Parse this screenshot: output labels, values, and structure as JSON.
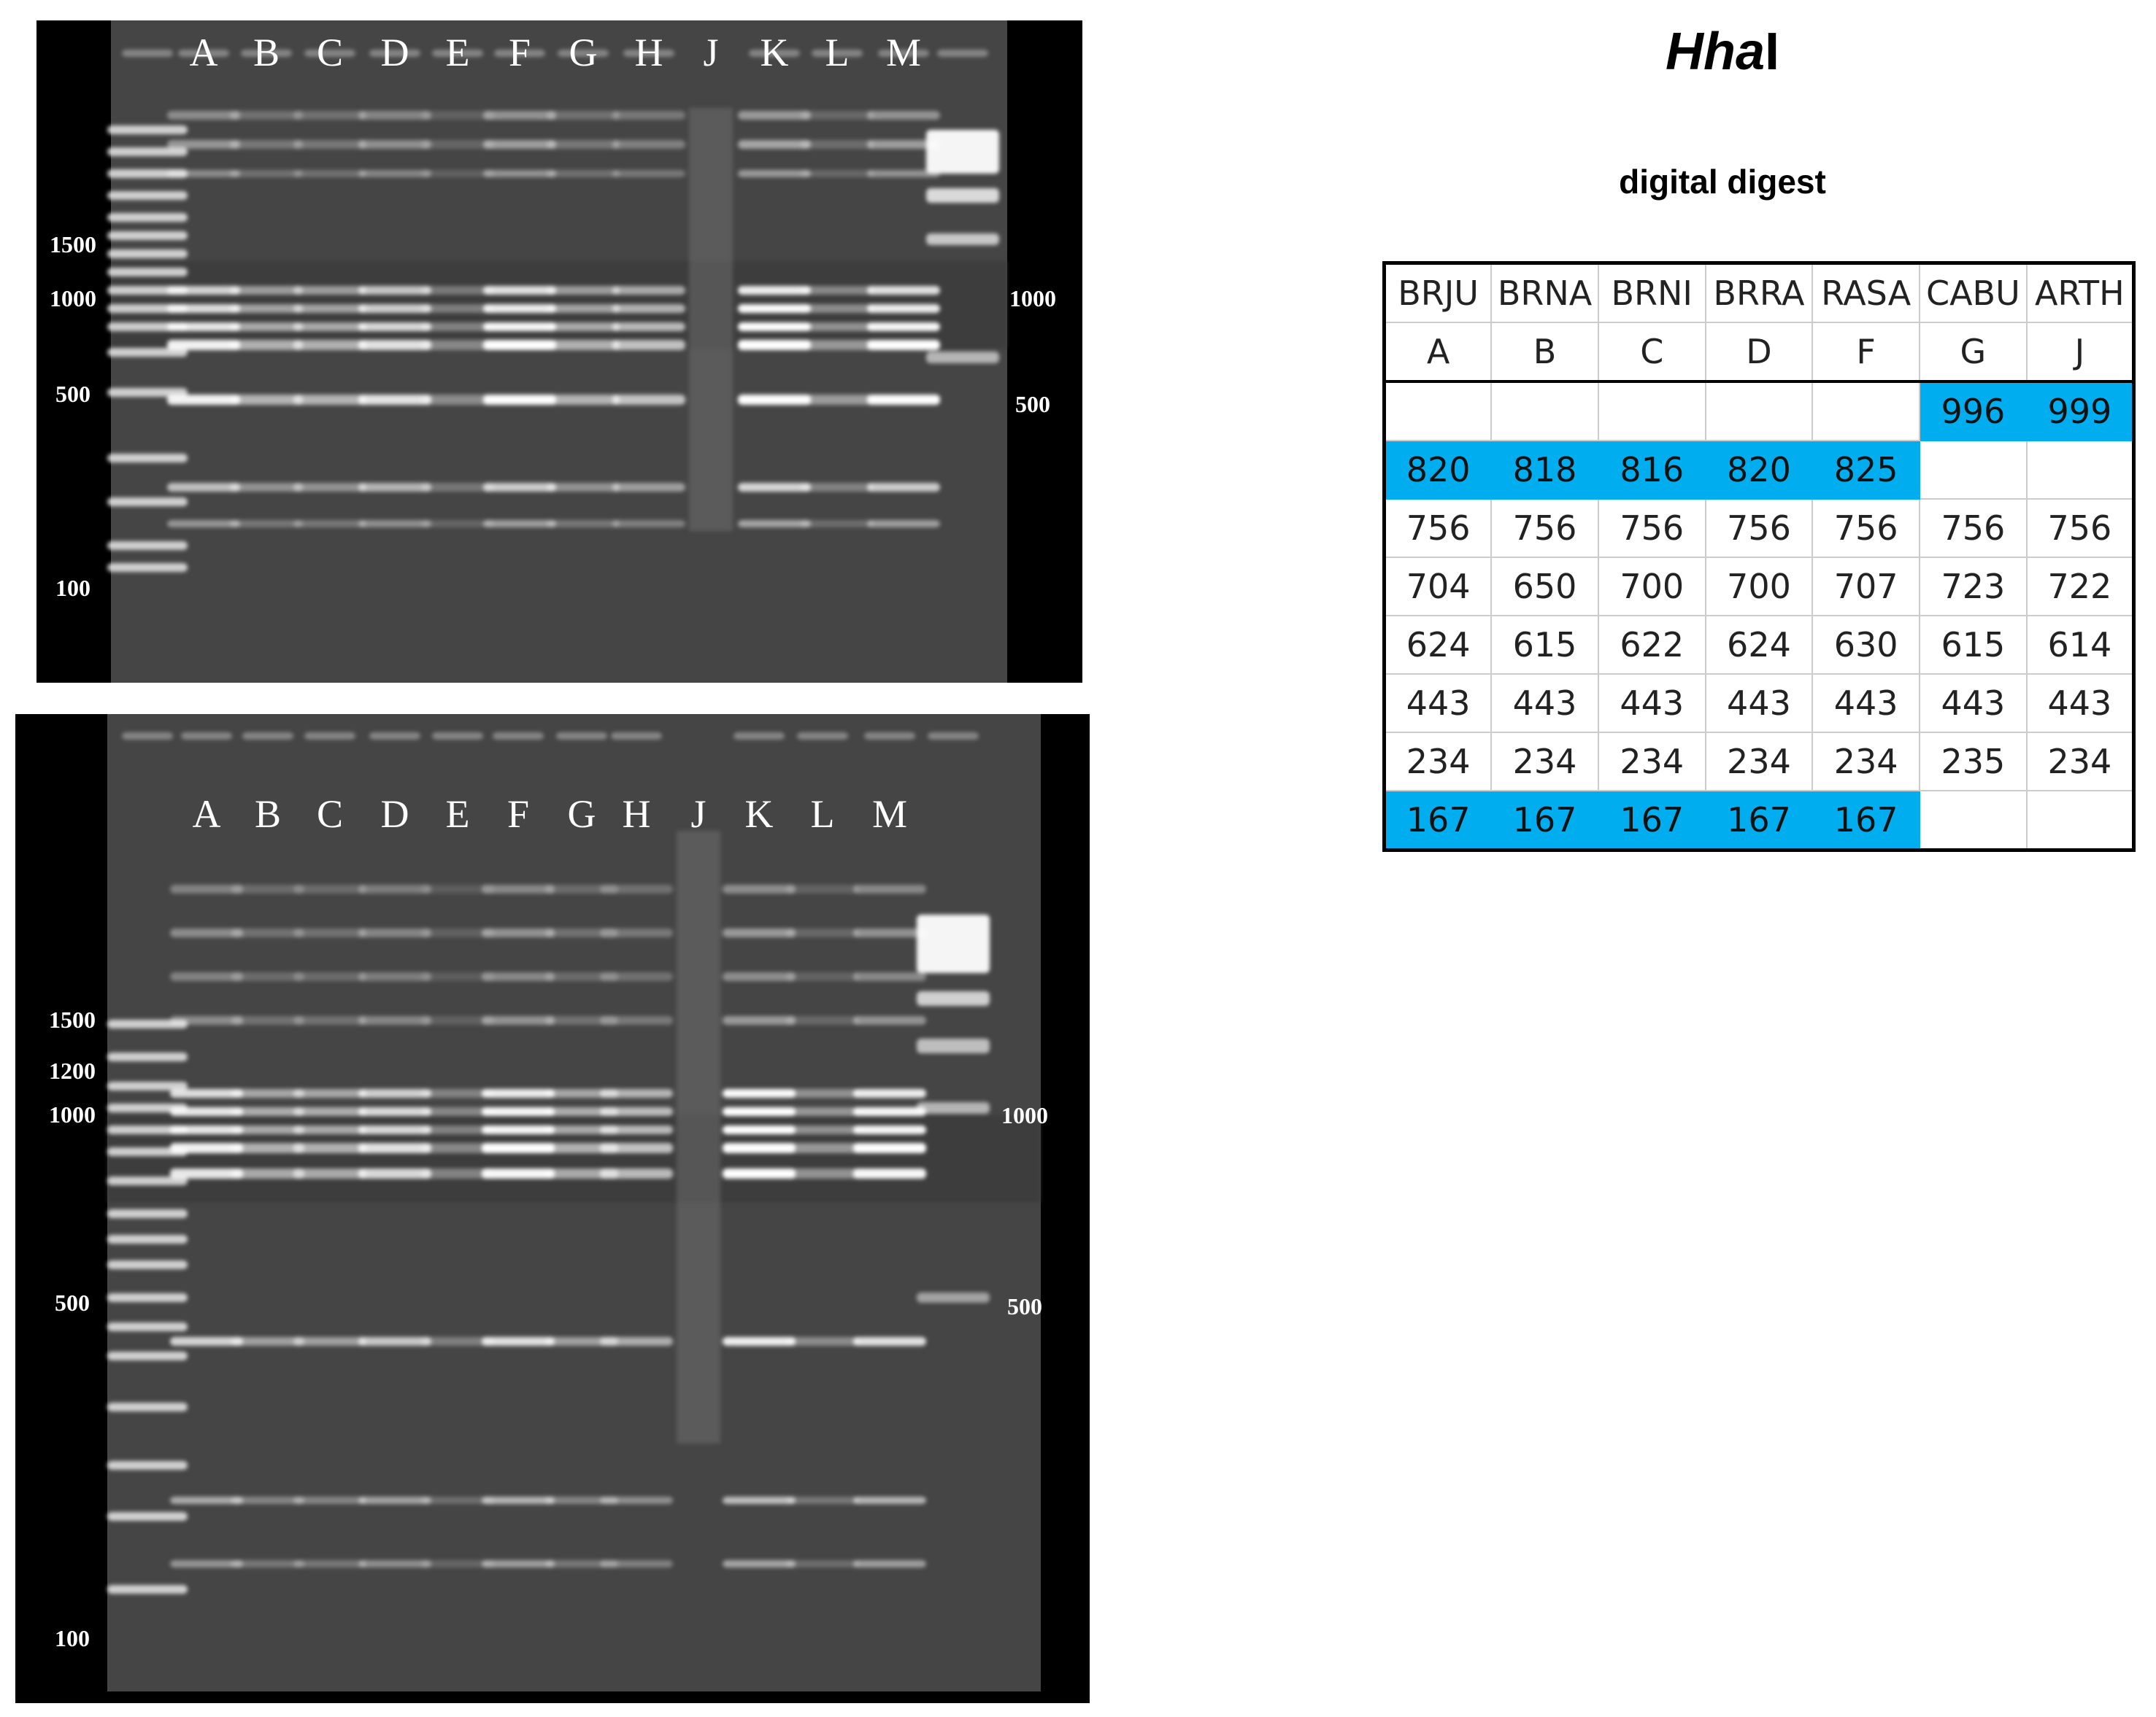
{
  "top_gel": {
    "lane_labels": [
      "A",
      "B",
      "C",
      "D",
      "E",
      "F",
      "G",
      "H",
      "J",
      "K",
      "L",
      "M"
    ],
    "left_markers": [
      "1500",
      "1000",
      "500",
      "100"
    ],
    "right_markers": [
      "1000",
      "500"
    ]
  },
  "bottom_gel": {
    "lane_labels": [
      "A",
      "B",
      "C",
      "D",
      "E",
      "F",
      "G",
      "H",
      "J",
      "K",
      "L",
      "M"
    ],
    "left_markers": [
      "1500",
      "1200",
      "1000",
      "500",
      "100"
    ],
    "right_markers": [
      "1000",
      "500"
    ]
  },
  "title": {
    "enzyme_italic": "Hha",
    "enzyme_suffix": "I"
  },
  "subtitle": "digital digest",
  "highlight_color": "#00aeef",
  "digest_table": {
    "species": [
      "BRJU",
      "BRNA",
      "BRNI",
      "BRRA",
      "RASA",
      "CABU",
      "ARTH"
    ],
    "lanes": [
      "A",
      "B",
      "C",
      "D",
      "F",
      "G",
      "J"
    ],
    "rows": [
      {
        "values": [
          "",
          "",
          "",
          "",
          "",
          "996",
          "999"
        ],
        "highlight": [
          false,
          false,
          false,
          false,
          false,
          true,
          true
        ]
      },
      {
        "values": [
          "820",
          "818",
          "816",
          "820",
          "825",
          "",
          ""
        ],
        "highlight": [
          true,
          true,
          true,
          true,
          true,
          false,
          false
        ]
      },
      {
        "values": [
          "756",
          "756",
          "756",
          "756",
          "756",
          "756",
          "756"
        ],
        "highlight": [
          false,
          false,
          false,
          false,
          false,
          false,
          false
        ]
      },
      {
        "values": [
          "704",
          "650",
          "700",
          "700",
          "707",
          "723",
          "722"
        ],
        "highlight": [
          false,
          false,
          false,
          false,
          false,
          false,
          false
        ]
      },
      {
        "values": [
          "624",
          "615",
          "622",
          "624",
          "630",
          "615",
          "614"
        ],
        "highlight": [
          false,
          false,
          false,
          false,
          false,
          false,
          false
        ]
      },
      {
        "values": [
          "443",
          "443",
          "443",
          "443",
          "443",
          "443",
          "443"
        ],
        "highlight": [
          false,
          false,
          false,
          false,
          false,
          false,
          false
        ]
      },
      {
        "values": [
          "234",
          "234",
          "234",
          "234",
          "234",
          "235",
          "234"
        ],
        "highlight": [
          false,
          false,
          false,
          false,
          false,
          false,
          false
        ]
      },
      {
        "values": [
          "167",
          "167",
          "167",
          "167",
          "167",
          "",
          ""
        ],
        "highlight": [
          true,
          true,
          true,
          true,
          true,
          false,
          false
        ]
      }
    ]
  }
}
